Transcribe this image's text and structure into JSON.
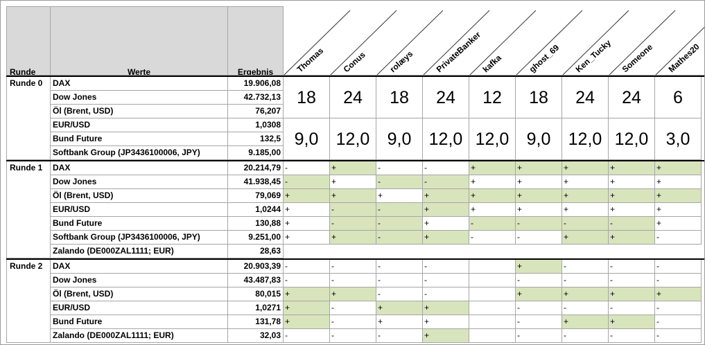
{
  "header": {
    "runde": "Runde",
    "werte": "Werte",
    "ergebnis": "Ergebnis",
    "players": [
      "Thomas",
      "Conus",
      "rolæys",
      "PrivateBanker",
      "kafka",
      "ghost_69",
      "Ken_Tucky",
      "Someone",
      "Mathes20"
    ]
  },
  "rounds": [
    {
      "label": "Runde 0",
      "rows": [
        {
          "label": "DAX",
          "ergebnis": "19.906,08"
        },
        {
          "label": "Dow Jones",
          "ergebnis": "42.732,13"
        },
        {
          "label": "Öl (Brent, USD)",
          "ergebnis": "76,207"
        },
        {
          "label": "EUR/USD",
          "ergebnis": "1,0308"
        },
        {
          "label": "Bund Future",
          "ergebnis": "132,5"
        },
        {
          "label": "Softbank Group (JP3436100006, JPY)",
          "ergebnis": "9.185,00"
        }
      ],
      "points": [
        [
          "18",
          "24",
          "18",
          "24",
          "12",
          "18",
          "24",
          "24",
          "6"
        ],
        [
          "9,0",
          "12,0",
          "9,0",
          "12,0",
          "12,0",
          "9,0",
          "12,0",
          "12,0",
          "3,0"
        ]
      ]
    },
    {
      "label": "Runde 1",
      "rows": [
        {
          "label": "DAX",
          "ergebnis": "20.214,79",
          "marks": [
            "-",
            "+",
            "-",
            "-",
            "+",
            "+",
            "+",
            "+",
            "+"
          ],
          "green": [
            false,
            true,
            false,
            false,
            true,
            true,
            true,
            true,
            true
          ]
        },
        {
          "label": "Dow Jones",
          "ergebnis": "41.938,45",
          "marks": [
            "-",
            "+",
            "-",
            "-",
            "+",
            "+",
            "+",
            "+",
            "+"
          ],
          "green": [
            true,
            false,
            true,
            true,
            false,
            false,
            false,
            false,
            false
          ]
        },
        {
          "label": "Öl (Brent, USD)",
          "ergebnis": "79,069",
          "marks": [
            "+",
            "+",
            "+",
            "+",
            "+",
            "+",
            "+",
            "+",
            "+"
          ],
          "green": [
            true,
            true,
            false,
            true,
            true,
            true,
            true,
            true,
            true
          ]
        },
        {
          "label": "EUR/USD",
          "ergebnis": "1,0244",
          "marks": [
            "+",
            "-",
            "-",
            "+",
            "+",
            "+",
            "+",
            "+",
            "+"
          ],
          "green": [
            false,
            true,
            true,
            true,
            false,
            false,
            false,
            false,
            false
          ]
        },
        {
          "label": "Bund Future",
          "ergebnis": "130,88",
          "marks": [
            "+",
            "-",
            "-",
            "+",
            "-",
            "-",
            "-",
            "-",
            "+"
          ],
          "green": [
            false,
            true,
            true,
            false,
            true,
            true,
            true,
            true,
            false
          ]
        },
        {
          "label": "Softbank Group (JP3436100006, JPY)",
          "ergebnis": "9.251,00",
          "marks": [
            "+",
            "+",
            "-",
            "+",
            "-",
            "-",
            "+",
            "+",
            "-"
          ],
          "green": [
            false,
            true,
            true,
            true,
            false,
            false,
            true,
            true,
            false
          ]
        },
        {
          "label": "Zalando (DE000ZAL1111; EUR)",
          "ergebnis": "28,63"
        }
      ]
    },
    {
      "label": "Runde 2",
      "rows": [
        {
          "label": "DAX",
          "ergebnis": "20.903,39",
          "marks": [
            "-",
            "-",
            "-",
            "-",
            null,
            "+",
            "-",
            "-",
            "-"
          ],
          "green": [
            false,
            false,
            false,
            false,
            false,
            true,
            false,
            false,
            false
          ]
        },
        {
          "label": "Dow Jones",
          "ergebnis": "43.487,83",
          "marks": [
            "-",
            "-",
            "-",
            "-",
            null,
            "-",
            "-",
            "-",
            "-"
          ],
          "green": [
            false,
            false,
            false,
            false,
            false,
            false,
            false,
            false,
            false
          ]
        },
        {
          "label": "Öl (Brent, USD)",
          "ergebnis": "80,015",
          "marks": [
            "+",
            "+",
            "-",
            "-",
            null,
            "+",
            "+",
            "+",
            "+"
          ],
          "green": [
            true,
            true,
            false,
            false,
            false,
            true,
            true,
            true,
            true
          ]
        },
        {
          "label": "EUR/USD",
          "ergebnis": "1,0271",
          "marks": [
            "+",
            "-",
            "+",
            "+",
            null,
            "-",
            "-",
            "-",
            "-"
          ],
          "green": [
            true,
            false,
            true,
            true,
            false,
            false,
            false,
            false,
            false
          ]
        },
        {
          "label": "Bund Future",
          "ergebnis": "131,78",
          "marks": [
            "+",
            "-",
            "+",
            "+",
            null,
            "-",
            "+",
            "+",
            "-"
          ],
          "green": [
            true,
            false,
            false,
            false,
            false,
            false,
            true,
            true,
            false
          ]
        },
        {
          "label": "Zalando (DE000ZAL1111; EUR)",
          "ergebnis": "32,03",
          "marks": [
            "-",
            "-",
            "-",
            "+",
            null,
            "-",
            "-",
            "-",
            "-"
          ],
          "green": [
            false,
            false,
            false,
            true,
            false,
            false,
            false,
            false,
            false
          ]
        }
      ]
    }
  ]
}
